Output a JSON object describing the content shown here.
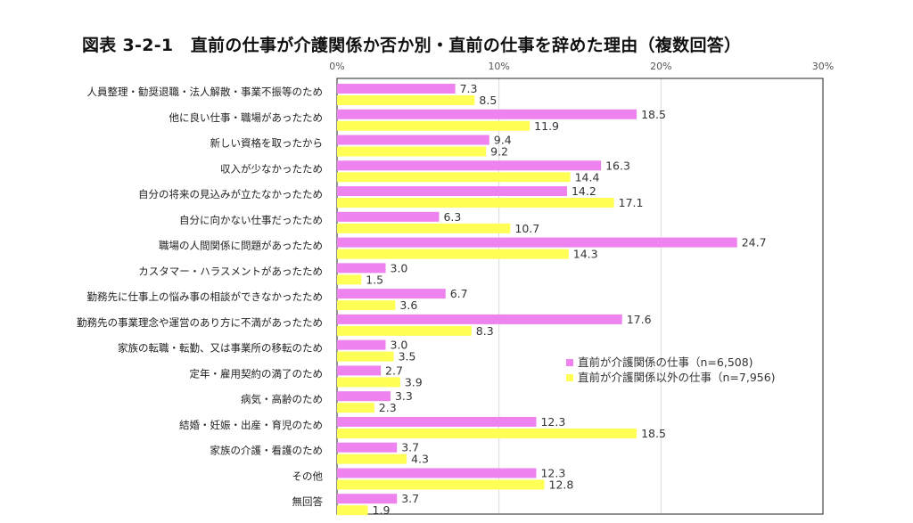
{
  "chart_data": {
    "type": "bar",
    "orientation": "horizontal",
    "title": "図表 3-2-1　直前の仕事が介護関係か否か別・直前の仕事を辞めた理由（複数回答）",
    "xlim": [
      0,
      30
    ],
    "xticks": [
      "0%",
      "10%",
      "20%",
      "30%"
    ],
    "grid": true,
    "legend_position": "lower-right inside",
    "categories": [
      "人員整理・勧奨退職・法人解散・事業不振等のため",
      "他に良い仕事・職場があったため",
      "新しい資格を取ったから",
      "収入が少なかったため",
      "自分の将来の見込みが立たなかったため",
      "自分に向かない仕事だったため",
      "職場の人間関係に問題があったため",
      "カスタマー・ハラスメントがあったため",
      "勤務先に仕事上の悩み事の相談ができなかったため",
      "勤務先の事業理念や運営のあり方に不満があったため",
      "家族の転職・転勤、又は事業所の移転のため",
      "定年・雇用契約の満了のため",
      "病気・高齢のため",
      "結婚・妊娠・出産・育児のため",
      "家族の介護・看護のため",
      "その他",
      "無回答"
    ],
    "series": [
      {
        "name": "直前が介護関係の仕事（n=6,508)",
        "color": "#ee82ee",
        "values": [
          7.3,
          18.5,
          9.4,
          16.3,
          14.2,
          6.3,
          24.7,
          3.0,
          6.7,
          17.6,
          3.0,
          2.7,
          3.3,
          12.3,
          3.7,
          12.3,
          3.7
        ]
      },
      {
        "name": "直前が介護関係以外の仕事（n=7,956)",
        "color": "#ffff55",
        "values": [
          8.5,
          11.9,
          9.2,
          14.4,
          17.1,
          10.7,
          14.3,
          1.5,
          3.6,
          8.3,
          3.5,
          3.9,
          2.3,
          18.5,
          4.3,
          12.8,
          1.9
        ]
      }
    ]
  }
}
